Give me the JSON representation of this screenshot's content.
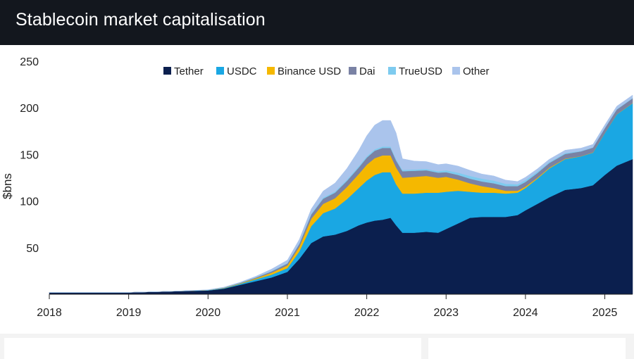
{
  "header": {
    "title": "Stablecoin market capitalisation"
  },
  "chart_data": {
    "type": "area",
    "stacked": true,
    "title": "Stablecoin market capitalisation",
    "xlabel": "",
    "ylabel": "$bns",
    "xlim": [
      2018.0,
      2025.35
    ],
    "ylim": [
      0,
      250
    ],
    "yticks": [
      50,
      100,
      150,
      200,
      250
    ],
    "xticks": [
      "2018",
      "2019",
      "2020",
      "2021",
      "2022",
      "2023",
      "2024",
      "2025"
    ],
    "legend_position": "top",
    "x": [
      2018.0,
      2019.0,
      2019.5,
      2020.0,
      2020.2,
      2020.4,
      2020.6,
      2020.8,
      2021.0,
      2021.15,
      2021.3,
      2021.45,
      2021.6,
      2021.75,
      2021.9,
      2022.0,
      2022.1,
      2022.2,
      2022.3,
      2022.37,
      2022.45,
      2022.6,
      2022.75,
      2022.9,
      2023.0,
      2023.15,
      2023.3,
      2023.45,
      2023.6,
      2023.75,
      2023.9,
      2024.0,
      2024.15,
      2024.3,
      2024.5,
      2024.7,
      2024.85,
      2025.0,
      2025.15,
      2025.35
    ],
    "series": [
      {
        "name": "Tether",
        "color": "#0b1f4e",
        "values": [
          2,
          2,
          3,
          4,
          6,
          10,
          14,
          18,
          24,
          38,
          55,
          62,
          64,
          68,
          74,
          77,
          79,
          80,
          82,
          74,
          66,
          66,
          67,
          66,
          70,
          76,
          82,
          83,
          83,
          83,
          85,
          90,
          97,
          104,
          112,
          114,
          117,
          128,
          138,
          145
        ]
      },
      {
        "name": "USDC",
        "color": "#1aa7e3",
        "values": [
          0,
          0,
          0,
          0.3,
          0.5,
          1,
          2,
          3,
          4,
          8,
          18,
          25,
          28,
          34,
          40,
          45,
          49,
          51,
          49,
          44,
          42,
          42,
          42,
          43,
          40,
          35,
          28,
          26,
          26,
          25,
          24,
          24,
          27,
          31,
          33,
          34,
          35,
          45,
          55,
          60
        ]
      },
      {
        "name": "Binance USD",
        "color": "#f5b800",
        "values": [
          0,
          0,
          0,
          0.1,
          0.3,
          0.5,
          1,
          2,
          3,
          5,
          8,
          10,
          11,
          13,
          15,
          17,
          18,
          18,
          18,
          18,
          17,
          18,
          18,
          16,
          16,
          12,
          9,
          7,
          5,
          3,
          2,
          1.5,
          1,
          0.8,
          0.5,
          0.3,
          0.3,
          0.2,
          0.2,
          0.2
        ]
      },
      {
        "name": "Dai",
        "color": "#7a82a4",
        "values": [
          0,
          0,
          0,
          0.1,
          0.2,
          0.4,
          0.8,
          1.5,
          2,
          3,
          4.5,
          5.5,
          6,
          6.5,
          7,
          7.5,
          8,
          8,
          8,
          7.5,
          7,
          6.5,
          6,
          5.5,
          5,
          5,
          5,
          5,
          5,
          5,
          5,
          5,
          5,
          5,
          5,
          5,
          5,
          5,
          5,
          5
        ]
      },
      {
        "name": "TrueUSD",
        "color": "#7ecbef",
        "values": [
          0,
          0,
          0,
          0.1,
          0.2,
          0.3,
          0.4,
          0.5,
          0.6,
          0.8,
          1,
          1.2,
          1.3,
          1.4,
          1.5,
          1.5,
          1.5,
          1.5,
          1.5,
          1.5,
          1.4,
          1.4,
          1.4,
          1.6,
          2,
          2.5,
          3,
          3,
          3,
          2.5,
          2,
          2,
          1.5,
          1,
          1,
          0.5,
          0.5,
          0.5,
          0.5,
          0.5
        ]
      },
      {
        "name": "Other",
        "color": "#aac4ec",
        "values": [
          0,
          0,
          0,
          0.2,
          0.4,
          0.6,
          1,
          2,
          3,
          4,
          5,
          7,
          9,
          12,
          17,
          22,
          26,
          28,
          28,
          28,
          12,
          9,
          8,
          7,
          7,
          7,
          6,
          5,
          5,
          4,
          3,
          3,
          3,
          3,
          3,
          3,
          3,
          3,
          3,
          3
        ]
      }
    ]
  }
}
